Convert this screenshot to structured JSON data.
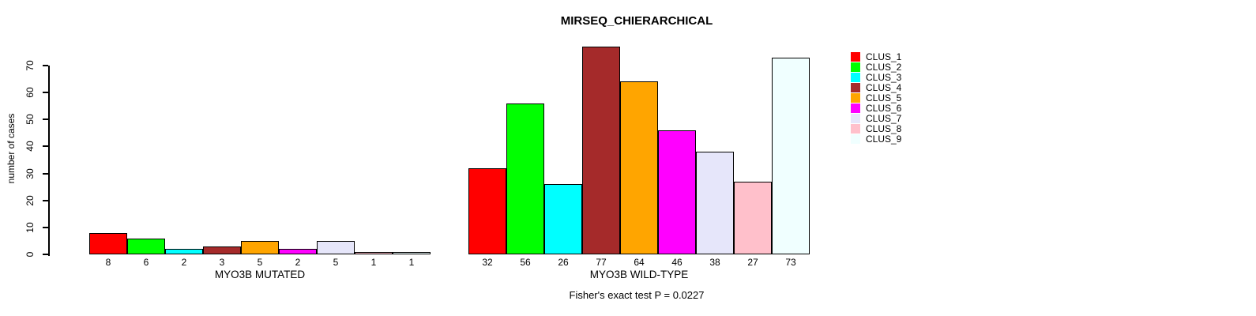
{
  "chart_data": {
    "type": "bar",
    "title": "MIRSEQ_CHIERARCHICAL",
    "ylabel": "number of cases",
    "annotation": "Fisher's exact test P = 0.0227",
    "ylim": [
      0,
      77
    ],
    "yticks": [
      0,
      10,
      20,
      30,
      40,
      50,
      60,
      70
    ],
    "grid": false,
    "legend_position": "top-right",
    "clusters": [
      "CLUS_1",
      "CLUS_2",
      "CLUS_3",
      "CLUS_4",
      "CLUS_5",
      "CLUS_6",
      "CLUS_7",
      "CLUS_8",
      "CLUS_9"
    ],
    "colors": [
      "#FF0000",
      "#00FF00",
      "#00FFFF",
      "#A52A2A",
      "#FFA500",
      "#FF00FF",
      "#E6E6FA",
      "#FFC0CB",
      "#F0FFFF"
    ],
    "groups": [
      {
        "label": "MYO3B MUTATED",
        "values": [
          8,
          6,
          2,
          3,
          5,
          2,
          5,
          1,
          1
        ]
      },
      {
        "label": "MYO3B WILD-TYPE",
        "values": [
          32,
          56,
          26,
          77,
          64,
          46,
          38,
          27,
          73
        ]
      }
    ]
  }
}
